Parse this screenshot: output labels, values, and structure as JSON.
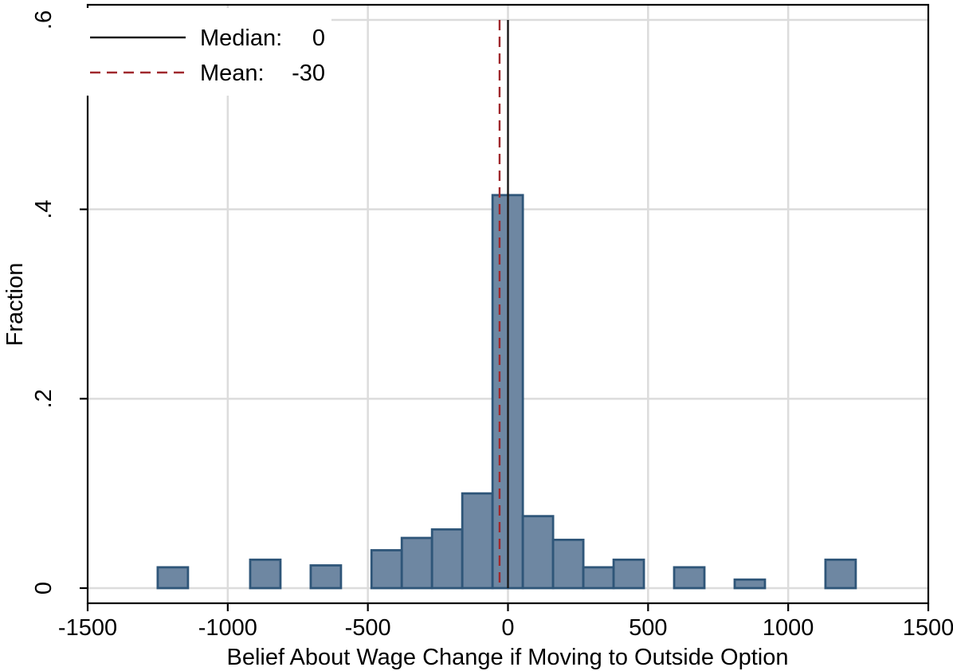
{
  "chart_data": {
    "type": "bar",
    "xlabel": "Belief About Wage Change if Moving to Outside Option",
    "ylabel": "Fraction",
    "xlim": [
      -1500,
      1500
    ],
    "ylim": [
      0,
      0.6
    ],
    "xticks": [
      -1500,
      -1000,
      -500,
      0,
      500,
      1000,
      1500
    ],
    "xtick_labels": [
      "-1500",
      "-1000",
      "-500",
      "0",
      "500",
      "1000",
      "1500"
    ],
    "yticks": [
      0,
      0.2,
      0.4,
      0.6
    ],
    "ytick_labels": [
      "0",
      ".2",
      ".4",
      ".6"
    ],
    "grid": true,
    "bin_width": 108,
    "bins": [
      {
        "left": -1250,
        "value": 0.022
      },
      {
        "left": -920,
        "value": 0.03
      },
      {
        "left": -704,
        "value": 0.024
      },
      {
        "left": -487,
        "value": 0.04
      },
      {
        "left": -379,
        "value": 0.053
      },
      {
        "left": -271,
        "value": 0.062
      },
      {
        "left": -163,
        "value": 0.1
      },
      {
        "left": -55,
        "value": 0.415
      },
      {
        "left": 53,
        "value": 0.076
      },
      {
        "left": 161,
        "value": 0.051
      },
      {
        "left": 269,
        "value": 0.022
      },
      {
        "left": 377,
        "value": 0.03
      },
      {
        "left": 593,
        "value": 0.022
      },
      {
        "left": 809,
        "value": 0.009
      },
      {
        "left": 1133,
        "value": 0.03
      }
    ],
    "reference_lines": [
      {
        "name": "Median",
        "value": 0,
        "style": "solid",
        "color": "#1a1a1a"
      },
      {
        "name": "Mean",
        "value": -30,
        "style": "dashed",
        "color": "#a0282d"
      }
    ],
    "legend": {
      "placement": "top-left",
      "entries": [
        {
          "label": "Median:",
          "value": "0"
        },
        {
          "label": "Mean:",
          "value": "-30"
        }
      ]
    },
    "colors": {
      "bar_fill": "#6e87a2",
      "bar_stroke": "#2f5679",
      "grid": "#dcdcdc",
      "median": "#1a1a1a",
      "mean": "#a0282d"
    }
  }
}
